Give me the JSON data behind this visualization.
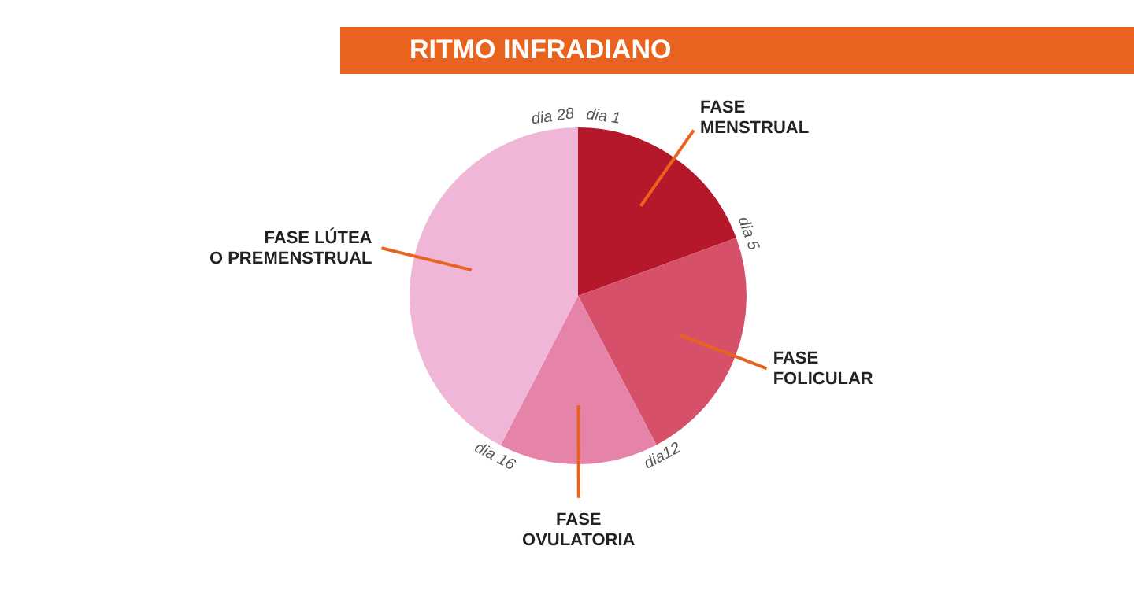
{
  "chart_data": {
    "type": "pie",
    "title": "RITMO INFRADIANO",
    "categories": [
      "FASE\nMENSTRUAL",
      "FASE\nFOLICULAR",
      "FASE\nOVULATORIA",
      "FASE LÚTEA\nO PREMENSTRUAL"
    ],
    "values": [
      19.4,
      22.9,
      15.3,
      42.4
    ],
    "colors": [
      "#b5182b",
      "#d6506a",
      "#e583a8",
      "#f0b6d8"
    ],
    "annotations": [
      "dia 1",
      "dia 5",
      "dia12",
      "dia 16",
      "dia 28"
    ],
    "legend": false
  }
}
